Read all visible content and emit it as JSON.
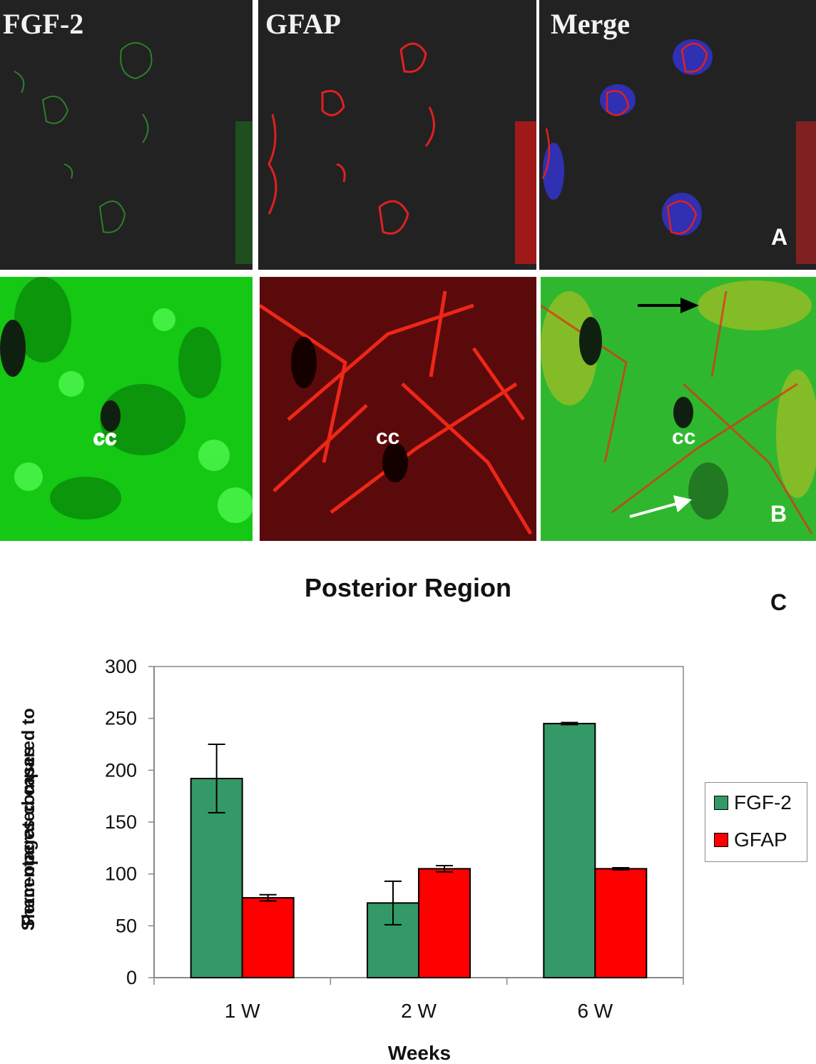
{
  "panels": {
    "top_titles": [
      "FGF-2",
      "GFAP",
      "Merge"
    ],
    "cc_label": "cc",
    "row_a_letter": "A",
    "row_b_letter": "B"
  },
  "colors": {
    "fgf2": "#339966",
    "gfap": "#ff0000",
    "micrograph_bg": "#222222",
    "merge_blue": "#3333cc"
  },
  "chart_letter": "C",
  "chart_data": {
    "type": "bar",
    "title": "Posterior Region",
    "xlabel": "Weeks",
    "ylabel_lines": [
      "Percentages compared to",
      "Sham-operated cases"
    ],
    "categories": [
      "1 W",
      "2 W",
      "6 W"
    ],
    "series": [
      {
        "name": "FGF-2",
        "values": [
          192,
          72,
          245
        ],
        "errors": [
          33,
          21,
          1
        ],
        "color": "#339966"
      },
      {
        "name": "GFAP",
        "values": [
          77,
          105,
          105
        ],
        "errors": [
          3,
          3,
          1
        ],
        "color": "#ff0000"
      }
    ],
    "ylim": [
      0,
      300
    ],
    "yticks": [
      0,
      50,
      100,
      150,
      200,
      250,
      300
    ],
    "grid": false,
    "legend_position": "right"
  }
}
